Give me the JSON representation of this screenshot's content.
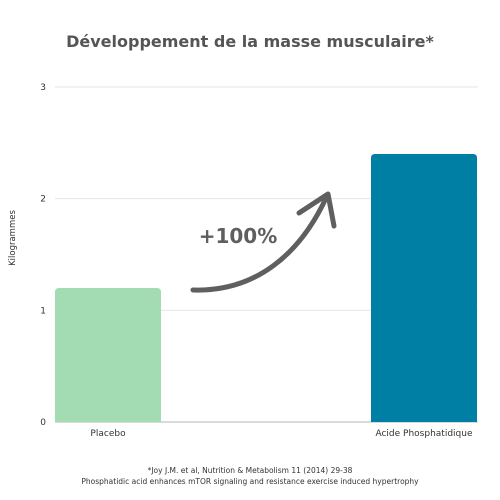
{
  "chart_data": {
    "type": "bar",
    "title": "Développement de la masse musculaire*",
    "xlabel": "",
    "ylabel": "Kilogrammes",
    "categories": [
      "Placebo",
      "Acide Phosphatidique"
    ],
    "values": [
      1.2,
      2.4
    ],
    "ylim": [
      0,
      3
    ],
    "yticks": [
      "0",
      "1",
      "2",
      "3"
    ],
    "grid": true,
    "annotation": "+100%",
    "colors": [
      "#a3dbb2",
      "#007fa5"
    ]
  },
  "footnotes": [
    "*Joy J.M. et al, Nutrition & Metabolism 11 (2014) 29-38",
    "Phosphatidic acid enhances mTOR signaling and resistance exercise induced hypertrophy"
  ]
}
